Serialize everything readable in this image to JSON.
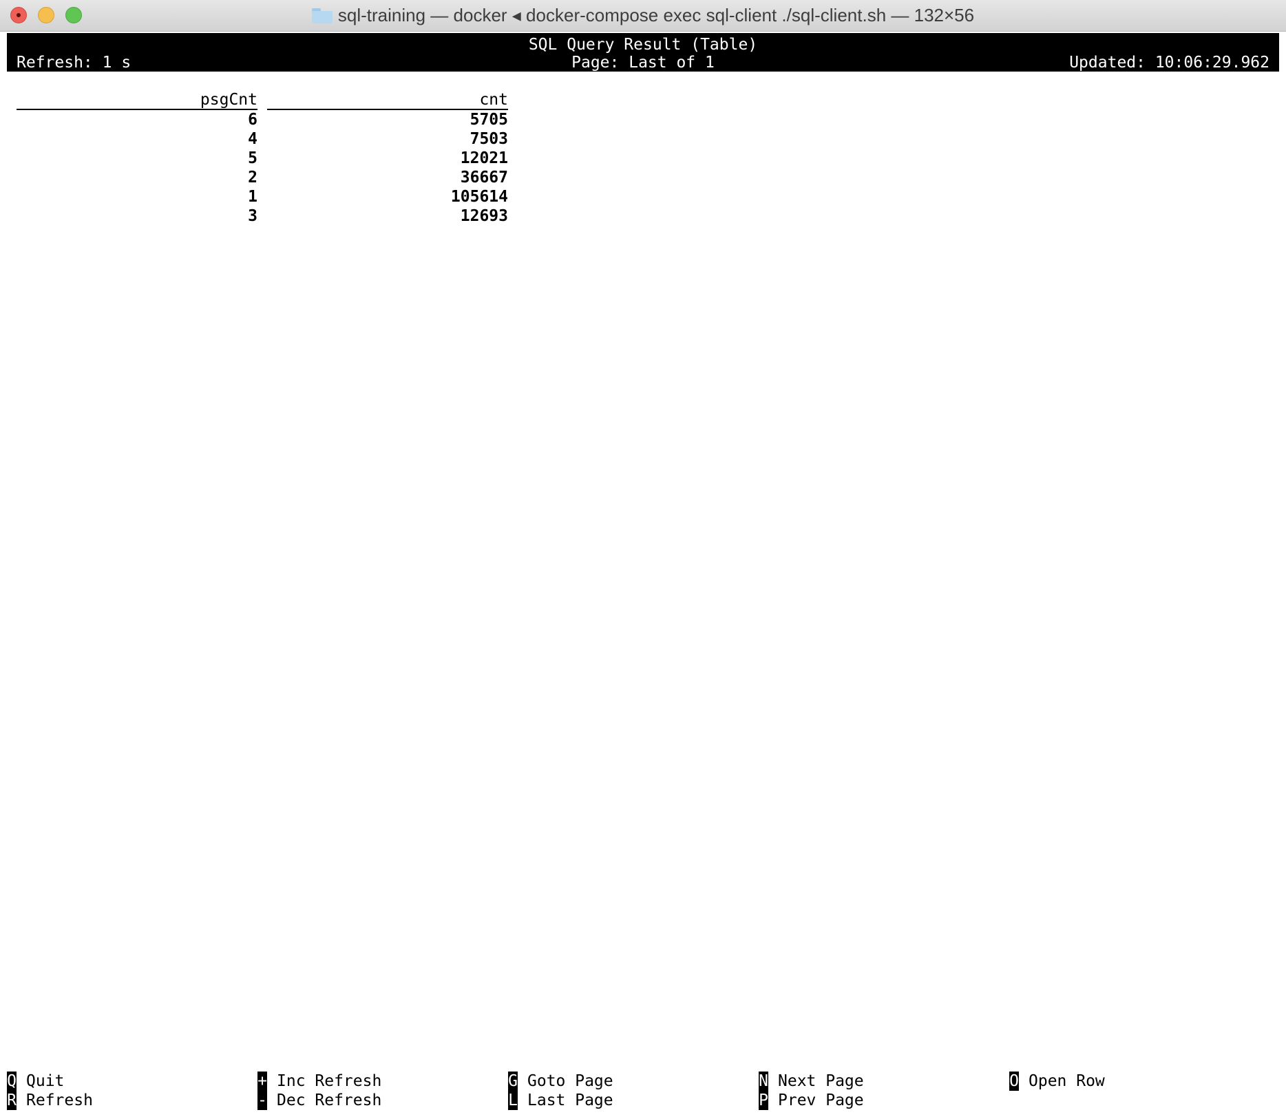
{
  "window": {
    "title": "sql-training — docker ◂ docker-compose exec sql-client ./sql-client.sh — 132×56"
  },
  "header": {
    "title": "SQL Query Result (Table)",
    "refresh": "Refresh: 1 s",
    "page": "Page: Last of 1",
    "updated": "Updated: 10:06:29.962"
  },
  "table": {
    "columns": [
      "psgCnt",
      "cnt"
    ],
    "rows": [
      [
        "6",
        "5705"
      ],
      [
        "4",
        "7503"
      ],
      [
        "5",
        "12021"
      ],
      [
        "2",
        "36667"
      ],
      [
        "1",
        "105614"
      ],
      [
        "3",
        "12693"
      ]
    ]
  },
  "footer": {
    "shortcuts": [
      {
        "key": "Q",
        "label": "Quit"
      },
      {
        "key": "R",
        "label": "Refresh"
      },
      {
        "key": "+",
        "label": "Inc Refresh"
      },
      {
        "key": "-",
        "label": "Dec Refresh"
      },
      {
        "key": "G",
        "label": "Goto Page"
      },
      {
        "key": "L",
        "label": "Last Page"
      },
      {
        "key": "N",
        "label": "Next Page"
      },
      {
        "key": "P",
        "label": "Prev Page"
      },
      {
        "key": "O",
        "label": "Open Row"
      }
    ]
  }
}
